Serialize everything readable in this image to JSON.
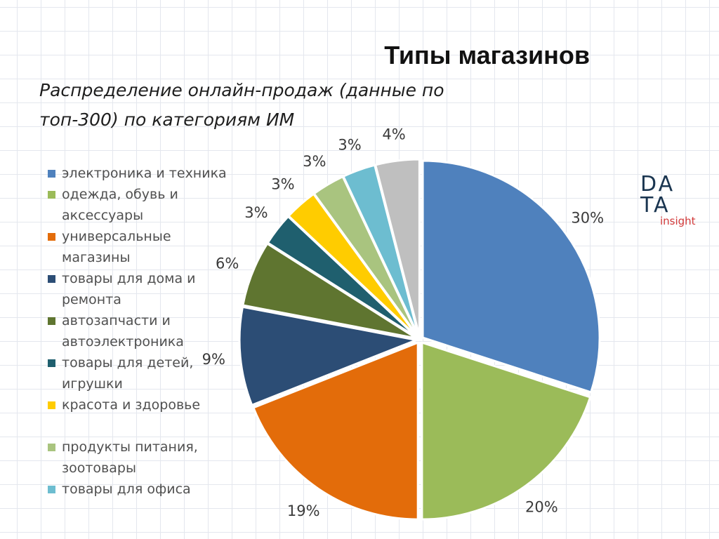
{
  "header": {
    "title": "Типы магазинов",
    "subtitle": "Распределение онлайн-продаж (данные по топ-300) по категориям ИМ"
  },
  "logo": {
    "row1": "DA",
    "row2": "TA",
    "sub": "insight"
  },
  "chart_data": {
    "type": "pie",
    "title": "Типы магазинов",
    "subtitle": "Распределение онлайн-продаж (данные по топ-300) по категориям ИМ",
    "legend_position": "left",
    "categories": [
      "электроника и техника",
      "одежда, обувь и аксессуары",
      "универсальные магазины",
      "товары для дома и ремонта",
      "автозапчасти и автоэлектроника",
      "товары для детей, игрушки",
      "красота и здоровье",
      "продукты питания, зоотовары",
      "товары для офиса",
      ""
    ],
    "values": [
      30,
      20,
      19,
      9,
      6,
      3,
      3,
      3,
      3,
      4
    ],
    "value_labels": [
      "30%",
      "20%",
      "19%",
      "9%",
      "6%",
      "3%",
      "3%",
      "3%",
      "3%",
      "4%"
    ],
    "colors": [
      "#4f81bd",
      "#9bbb59",
      "#e36c0a",
      "#2c4d75",
      "#5f7530",
      "#1f5f6e",
      "#ffcc00",
      "#a9c47f",
      "#6dbdd0",
      "#bfbfbf"
    ],
    "unit": "%"
  }
}
